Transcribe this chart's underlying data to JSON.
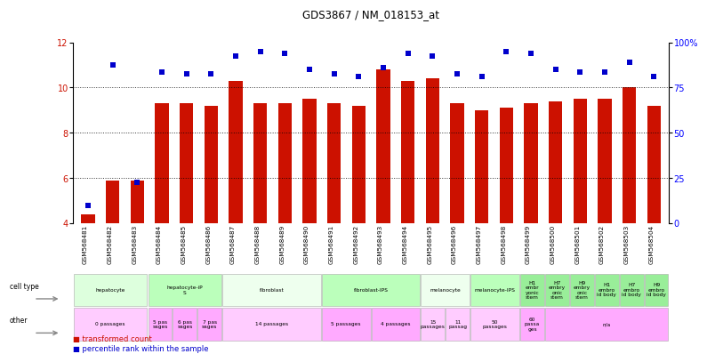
{
  "title": "GDS3867 / NM_018153_at",
  "samples": [
    "GSM568481",
    "GSM568482",
    "GSM568483",
    "GSM568484",
    "GSM568485",
    "GSM568486",
    "GSM568487",
    "GSM568488",
    "GSM568489",
    "GSM568490",
    "GSM568491",
    "GSM568492",
    "GSM568493",
    "GSM568494",
    "GSM568495",
    "GSM568496",
    "GSM568497",
    "GSM568498",
    "GSM568499",
    "GSM568500",
    "GSM568501",
    "GSM568502",
    "GSM568503",
    "GSM568504"
  ],
  "bar_values": [
    4.4,
    5.9,
    5.9,
    9.3,
    9.3,
    9.2,
    10.3,
    9.3,
    9.3,
    9.5,
    9.3,
    9.2,
    10.8,
    10.3,
    10.4,
    9.3,
    9.0,
    9.1,
    9.3,
    9.4,
    9.5,
    9.5,
    10.0,
    9.2
  ],
  "dot_values": [
    4.8,
    11.0,
    5.8,
    10.7,
    10.6,
    10.6,
    11.4,
    11.6,
    11.5,
    10.8,
    10.6,
    10.5,
    10.9,
    11.5,
    11.4,
    10.6,
    10.5,
    11.6,
    11.5,
    10.8,
    10.7,
    10.7,
    11.1,
    10.5
  ],
  "bar_color": "#cc1100",
  "dot_color": "#0000cc",
  "ylim_left": [
    4,
    12
  ],
  "ylim_right": [
    0,
    100
  ],
  "yticks_left": [
    4,
    6,
    8,
    10,
    12
  ],
  "yticks_right": [
    0,
    25,
    50,
    75,
    100
  ],
  "ytick_labels_right": [
    "0",
    "25",
    "50",
    "75",
    "100%"
  ],
  "cell_type_groups": [
    {
      "label": "hepatocyte",
      "start": 0,
      "end": 2,
      "color": "#ddffdd"
    },
    {
      "label": "hepatocyte-iP\nS",
      "start": 3,
      "end": 5,
      "color": "#bbffbb"
    },
    {
      "label": "fibroblast",
      "start": 6,
      "end": 9,
      "color": "#eeffee"
    },
    {
      "label": "fibroblast-IPS",
      "start": 10,
      "end": 13,
      "color": "#bbffbb"
    },
    {
      "label": "melanocyte",
      "start": 14,
      "end": 15,
      "color": "#eeffee"
    },
    {
      "label": "melanocyte-IPS",
      "start": 16,
      "end": 17,
      "color": "#bbffbb"
    },
    {
      "label": "H1\nembr\nyonic\nstem",
      "start": 18,
      "end": 18,
      "color": "#99ee99"
    },
    {
      "label": "H7\nembry\nonic\nstem",
      "start": 19,
      "end": 19,
      "color": "#99ee99"
    },
    {
      "label": "H9\nembry\nonic\nstem",
      "start": 20,
      "end": 20,
      "color": "#99ee99"
    },
    {
      "label": "H1\nembro\nid body",
      "start": 21,
      "end": 21,
      "color": "#99ee99"
    },
    {
      "label": "H7\nembro\nid body",
      "start": 22,
      "end": 22,
      "color": "#99ee99"
    },
    {
      "label": "H9\nembro\nid body",
      "start": 23,
      "end": 23,
      "color": "#99ee99"
    }
  ],
  "other_groups": [
    {
      "label": "0 passages",
      "start": 0,
      "end": 2,
      "color": "#ffccff"
    },
    {
      "label": "5 pas\nsages",
      "start": 3,
      "end": 3,
      "color": "#ffaaff"
    },
    {
      "label": "6 pas\nsages",
      "start": 4,
      "end": 4,
      "color": "#ffaaff"
    },
    {
      "label": "7 pas\nsages",
      "start": 5,
      "end": 5,
      "color": "#ffaaff"
    },
    {
      "label": "14 passages",
      "start": 6,
      "end": 9,
      "color": "#ffccff"
    },
    {
      "label": "5 passages",
      "start": 10,
      "end": 11,
      "color": "#ffaaff"
    },
    {
      "label": "4 passages",
      "start": 12,
      "end": 13,
      "color": "#ffaaff"
    },
    {
      "label": "15\npassages",
      "start": 14,
      "end": 14,
      "color": "#ffccff"
    },
    {
      "label": "11\npassag",
      "start": 15,
      "end": 15,
      "color": "#ffccff"
    },
    {
      "label": "50\npassages",
      "start": 16,
      "end": 17,
      "color": "#ffccff"
    },
    {
      "label": "60\npassa\nges",
      "start": 18,
      "end": 18,
      "color": "#ffaaff"
    },
    {
      "label": "n/a",
      "start": 19,
      "end": 23,
      "color": "#ffaaff"
    }
  ],
  "row_label_cell_type": "cell type",
  "row_label_other": "other",
  "legend_bar": "transformed count",
  "legend_dot": "percentile rank within the sample",
  "bg_color": "#ffffff"
}
